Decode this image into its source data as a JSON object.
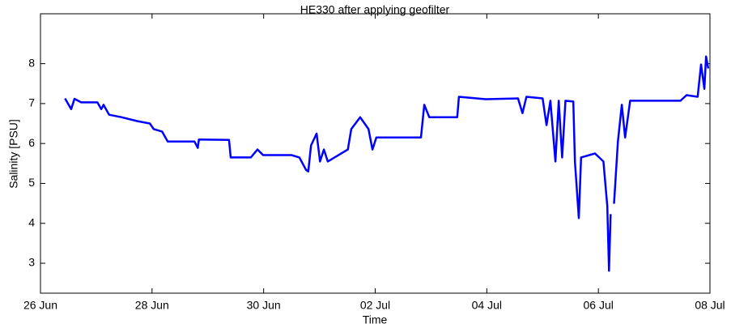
{
  "chart_data": {
    "type": "line",
    "title": "HE330 after applying geofilter",
    "xlabel": "Time",
    "ylabel": "Salinity [PSU]",
    "xlim": [
      26,
      38
    ],
    "ylim": [
      2.25,
      9.25
    ],
    "xticks": [
      {
        "value": 26,
        "label": "26 Jun"
      },
      {
        "value": 28,
        "label": "28 Jun"
      },
      {
        "value": 30,
        "label": "30 Jun"
      },
      {
        "value": 32,
        "label": "02 Jul"
      },
      {
        "value": 34,
        "label": "04 Jul"
      },
      {
        "value": 36,
        "label": "06 Jul"
      },
      {
        "value": 38,
        "label": "08 Jul"
      }
    ],
    "yticks": [
      3,
      4,
      5,
      6,
      7,
      8
    ],
    "series": [
      {
        "name": "Salinity",
        "color": "#0000ff",
        "x": [
          26.44,
          26.55,
          26.61,
          26.73,
          27.02,
          27.09,
          27.13,
          27.23,
          27.45,
          27.74,
          27.96,
          28.03,
          28.18,
          28.28,
          28.76,
          28.82,
          28.84,
          29.38,
          29.41,
          29.77,
          29.89,
          29.99,
          30.5,
          30.64,
          30.76,
          30.8,
          30.85,
          30.95,
          31.01,
          31.08,
          31.15,
          31.51,
          31.57,
          31.73,
          31.88,
          31.95,
          32.02,
          32.82,
          32.88,
          32.97,
          33.47,
          33.5,
          33.98,
          34.56,
          34.64,
          34.71,
          35.0,
          35.07,
          35.14,
          35.23,
          35.29,
          35.35,
          35.41,
          35.55,
          35.58,
          35.65,
          35.69,
          35.94,
          36.09,
          36.16,
          36.19,
          36.22,
          36.25,
          36.28,
          36.35,
          36.42,
          36.48,
          36.57,
          36.89,
          37.47,
          37.58,
          37.78,
          37.84,
          37.9,
          37.93,
          37.97
        ],
        "values": [
          7.13,
          6.86,
          7.12,
          7.03,
          7.03,
          6.86,
          6.97,
          6.72,
          6.66,
          6.56,
          6.5,
          6.36,
          6.3,
          6.05,
          6.05,
          5.89,
          6.1,
          6.09,
          5.65,
          5.65,
          5.85,
          5.71,
          5.71,
          5.65,
          5.34,
          5.3,
          5.95,
          6.25,
          5.55,
          5.85,
          5.55,
          5.85,
          6.36,
          6.66,
          6.36,
          5.85,
          6.15,
          6.15,
          6.97,
          6.66,
          6.66,
          7.17,
          7.11,
          7.13,
          6.76,
          7.17,
          7.13,
          6.46,
          7.07,
          5.55,
          7.07,
          5.65,
          7.07,
          7.05,
          5.55,
          4.13,
          5.65,
          5.75,
          5.55,
          4.43,
          2.81,
          4.23,
          null,
          4.49,
          6.05,
          6.97,
          6.15,
          7.07,
          7.07,
          7.07,
          7.21,
          7.17,
          7.98,
          7.37,
          8.18,
          7.88
        ]
      }
    ]
  }
}
